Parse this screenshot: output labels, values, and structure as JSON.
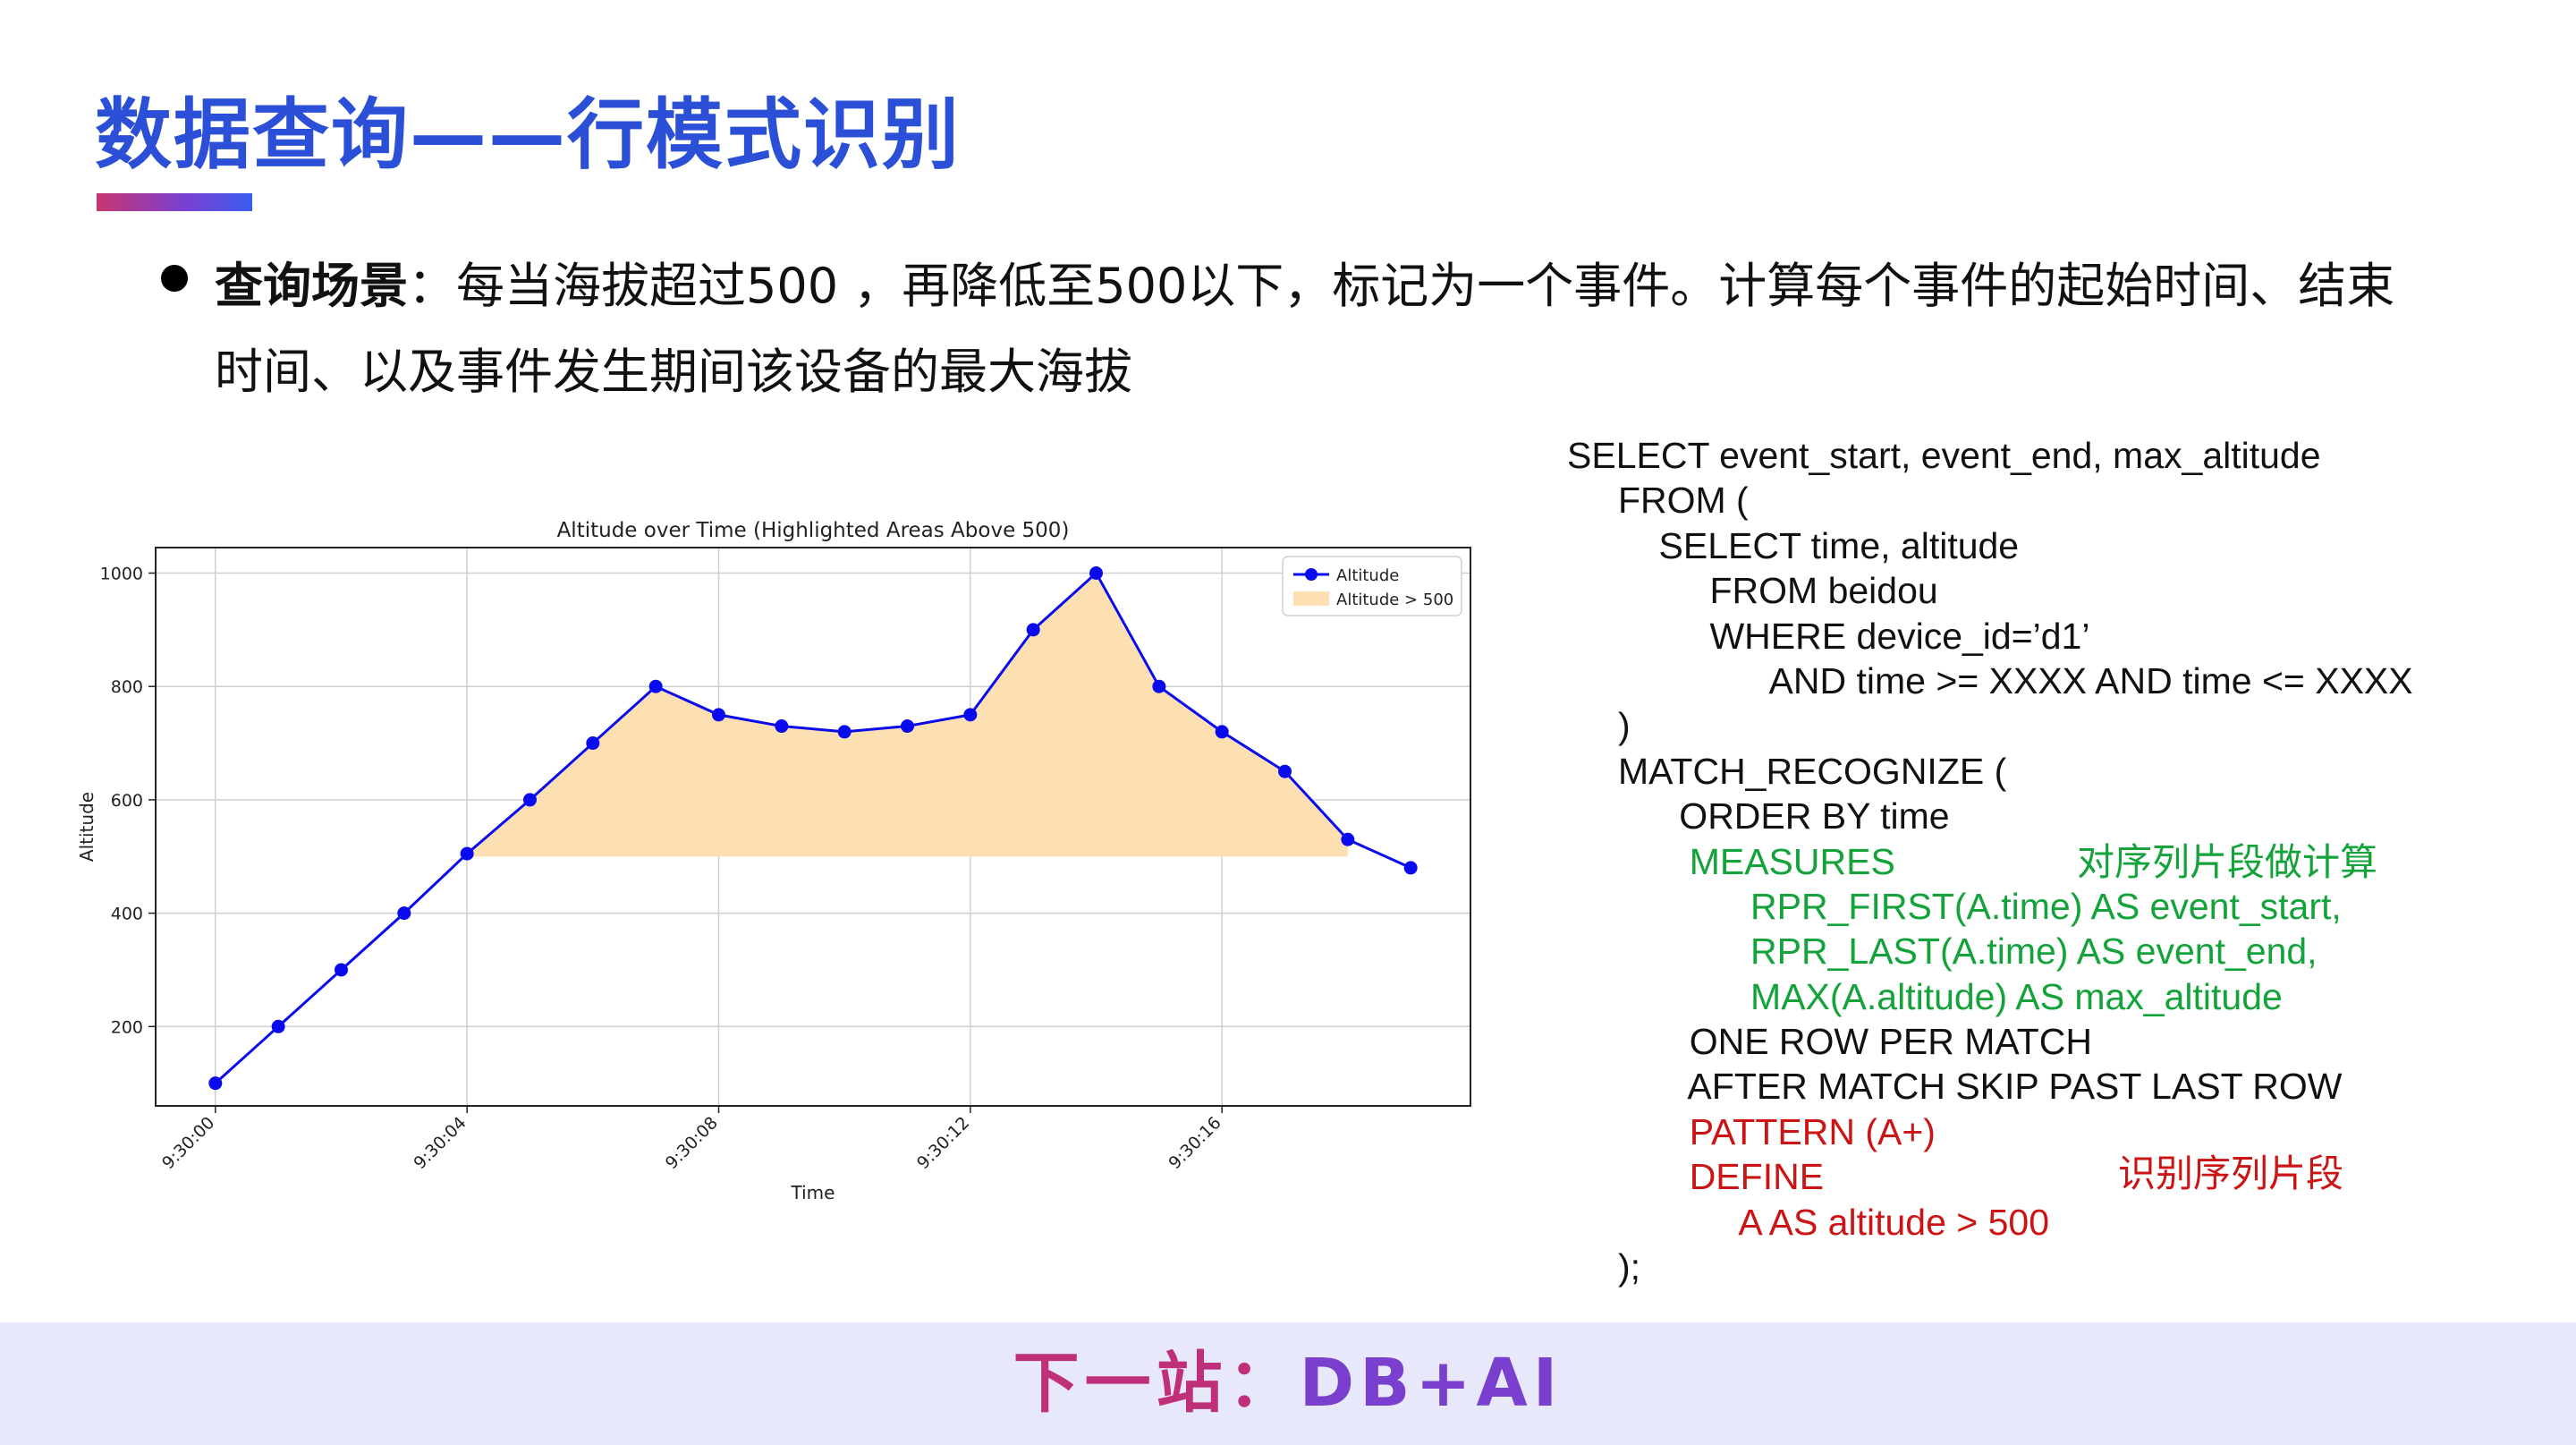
{
  "slide": {
    "title": "数据查询——行模式识别",
    "scenario_label": "查询场景",
    "scenario_text": "：每当海拔超过500 ，再降低至500以下，标记为一个事件。计算每个事件的起始时间、结束时间、以及事件发生期间该设备的最大海拔",
    "footer_part1": "下一站：",
    "footer_part2": "DB+AI"
  },
  "sql": {
    "lines": [
      "SELECT event_start, event_end, max_altitude",
      "     FROM (",
      "         SELECT time, altitude",
      "              FROM beidou",
      "              WHERE device_id=’d1’",
      "                    AND time >= XXXX AND time <= XXXX",
      "     )",
      "     MATCH_RECOGNIZE (",
      "           ORDER BY time",
      "            MEASURES",
      "                  RPR_FIRST(A.time) AS event_start,",
      "                  RPR_LAST(A.time) AS event_end,",
      "                  MAX(A.altitude) AS max_altitude",
      "            ONE ROW PER MATCH",
      "            AFTER MATCH SKIP PAST LAST ROW",
      "            PATTERN (A+)",
      "            DEFINE",
      "                 A AS altitude > 500",
      "     );"
    ],
    "line_colors": [
      "default",
      "default",
      "default",
      "default",
      "default",
      "default",
      "default",
      "default",
      "default",
      "green",
      "green",
      "green",
      "green",
      "default",
      "default",
      "red",
      "red",
      "red",
      "default"
    ],
    "note_measures": "对序列片段做计算",
    "note_define": "识别序列片段",
    "green": "#13a33a",
    "red": "#cc1414"
  },
  "chart_data": {
    "type": "line",
    "title": "Altitude over Time (Highlighted Areas Above 500)",
    "xlabel": "Time",
    "ylabel": "Altitude",
    "x": [
      "9:30:00",
      "9:30:01",
      "9:30:02",
      "9:30:03",
      "9:30:04",
      "9:30:05",
      "9:30:06",
      "9:30:07",
      "9:30:08",
      "9:30:09",
      "9:30:10",
      "9:30:11",
      "9:30:12",
      "9:30:13",
      "9:30:14",
      "9:30:15",
      "9:30:16",
      "9:30:17",
      "9:30:18",
      "9:30:19"
    ],
    "series": [
      {
        "name": "Altitude",
        "values": [
          100,
          200,
          300,
          400,
          505,
          600,
          700,
          800,
          750,
          730,
          720,
          730,
          750,
          900,
          1000,
          800,
          720,
          650,
          530,
          480
        ],
        "color": "#0a0aef"
      }
    ],
    "fill": {
      "name": "Altitude > 500",
      "threshold": 500,
      "color": "#fde0b1"
    },
    "xticks": [
      "9:30:00",
      "9:30:04",
      "9:30:08",
      "9:30:12",
      "9:30:16"
    ],
    "yticks": [
      200,
      400,
      600,
      800,
      1000
    ],
    "ylim": [
      60,
      1045
    ],
    "grid": true,
    "legend_position": "top-right"
  }
}
